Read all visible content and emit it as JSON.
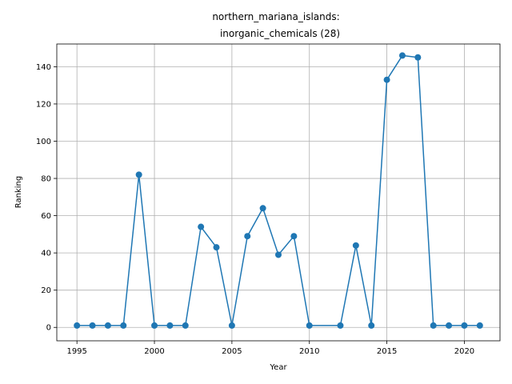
{
  "chart_data": {
    "type": "line",
    "title_line1": "northern_mariana_islands:",
    "title_line2": "inorganic_chemicals (28)",
    "xlabel": "Year",
    "ylabel": "Ranking",
    "xlim": [
      1993.7,
      2022.3
    ],
    "ylim": [
      -7.2,
      152.2
    ],
    "xticks": [
      1995,
      2000,
      2005,
      2010,
      2015,
      2020
    ],
    "yticks": [
      0,
      20,
      40,
      60,
      80,
      100,
      120,
      140
    ],
    "grid": true,
    "series": [
      {
        "color": "#1f77b4",
        "marker": "circle",
        "x": [
          1995,
          1996,
          1997,
          1998,
          1999,
          2000,
          2001,
          2002,
          2003,
          2004,
          2005,
          2006,
          2007,
          2008,
          2009,
          2010,
          2012,
          2013,
          2014,
          2015,
          2016,
          2017,
          2018,
          2019,
          2020,
          2021
        ],
        "y": [
          1,
          1,
          1,
          1,
          82,
          1,
          1,
          1,
          54,
          43,
          1,
          49,
          64,
          39,
          49,
          1,
          1,
          44,
          1,
          133,
          146,
          145,
          1,
          1,
          1,
          1
        ]
      }
    ]
  }
}
